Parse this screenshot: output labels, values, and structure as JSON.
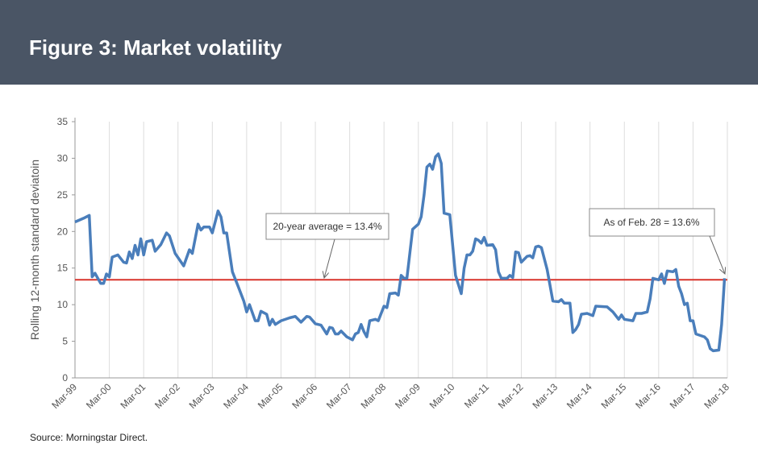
{
  "chart_data": {
    "type": "line",
    "title": "Figure 3: Market volatility",
    "y_label": "Rolling 12-month standard deviatoin",
    "source": "Source: Morningstar Direct.",
    "color": "#4a7ebb",
    "grid": "x",
    "xlim": [
      "1999-03",
      "2018-03"
    ],
    "xticks": [
      {
        "value": "1999-03",
        "label": "Mar-99"
      },
      {
        "value": "2000-03",
        "label": "Mar-00"
      },
      {
        "value": "2001-03",
        "label": "Mar-01"
      },
      {
        "value": "2002-03",
        "label": "Mar-02"
      },
      {
        "value": "2003-03",
        "label": "Mar-03"
      },
      {
        "value": "2004-03",
        "label": "Mar-04"
      },
      {
        "value": "2005-03",
        "label": "Mar-05"
      },
      {
        "value": "2006-03",
        "label": "Mar-06"
      },
      {
        "value": "2007-03",
        "label": "Mar-07"
      },
      {
        "value": "2008-03",
        "label": "Mar-08"
      },
      {
        "value": "2009-03",
        "label": "Mar-09"
      },
      {
        "value": "2010-03",
        "label": "Mar-10"
      },
      {
        "value": "2011-03",
        "label": "Mar-11"
      },
      {
        "value": "2012-03",
        "label": "Mar-12"
      },
      {
        "value": "2013-03",
        "label": "Mar-13"
      },
      {
        "value": "2014-03",
        "label": "Mar-14"
      },
      {
        "value": "2015-03",
        "label": "Mar-15"
      },
      {
        "value": "2016-03",
        "label": "Mar-16"
      },
      {
        "value": "2017-03",
        "label": "Mar-17"
      },
      {
        "value": "2018-03",
        "label": "Mar-18"
      }
    ],
    "ylim": [
      0,
      35
    ],
    "yticks": [
      0,
      5,
      10,
      15,
      20,
      25,
      30,
      35
    ],
    "average": {
      "value": 13.4,
      "color": "#d9342b"
    },
    "annotations": [
      "20-year average = 13.4%",
      "As of Feb. 28 = 13.6%"
    ],
    "x": [
      "1999-03",
      "1999-06",
      "1999-08",
      "1999-09",
      "1999-10",
      "1999-12",
      "2000-01",
      "2000-02",
      "2000-03",
      "2000-04",
      "2000-06",
      "2000-08",
      "2000-09",
      "2000-10",
      "2000-11",
      "2000-12",
      "2001-01",
      "2001-02",
      "2001-03",
      "2001-04",
      "2001-06",
      "2001-07",
      "2001-09",
      "2001-11",
      "2001-12",
      "2002-02",
      "2002-05",
      "2002-07",
      "2002-08",
      "2002-10",
      "2002-11",
      "2002-12",
      "2003-02",
      "2003-03",
      "2003-05",
      "2003-06",
      "2003-07",
      "2003-08",
      "2003-10",
      "2003-12",
      "2004-02",
      "2004-03",
      "2004-04",
      "2004-06",
      "2004-07",
      "2004-08",
      "2004-10",
      "2004-11",
      "2004-12",
      "2005-01",
      "2005-03",
      "2005-06",
      "2005-08",
      "2005-10",
      "2005-12",
      "2006-01",
      "2006-03",
      "2006-05",
      "2006-07",
      "2006-08",
      "2006-09",
      "2006-10",
      "2006-11",
      "2006-12",
      "2007-02",
      "2007-04",
      "2007-05",
      "2007-06",
      "2007-07",
      "2007-08",
      "2007-09",
      "2007-10",
      "2007-12",
      "2008-01",
      "2008-03",
      "2008-04",
      "2008-05",
      "2008-07",
      "2008-08",
      "2008-09",
      "2008-10",
      "2008-11",
      "2009-01",
      "2009-03",
      "2009-04",
      "2009-05",
      "2009-06",
      "2009-07",
      "2009-08",
      "2009-09",
      "2009-10",
      "2009-11",
      "2009-12",
      "2010-02",
      "2010-04",
      "2010-06",
      "2010-07",
      "2010-08",
      "2010-09",
      "2010-10",
      "2010-11",
      "2010-12",
      "2011-01",
      "2011-02",
      "2011-03",
      "2011-05",
      "2011-06",
      "2011-07",
      "2011-08",
      "2011-10",
      "2011-11",
      "2011-12",
      "2012-01",
      "2012-02",
      "2012-03",
      "2012-05",
      "2012-06",
      "2012-07",
      "2012-08",
      "2012-09",
      "2012-10",
      "2012-12",
      "2013-02",
      "2013-04",
      "2013-05",
      "2013-06",
      "2013-08",
      "2013-09",
      "2013-10",
      "2013-11",
      "2013-12",
      "2014-02",
      "2014-04",
      "2014-05",
      "2014-09",
      "2014-11",
      "2015-01",
      "2015-02",
      "2015-03",
      "2015-06",
      "2015-07",
      "2015-09",
      "2015-11",
      "2015-12",
      "2016-01",
      "2016-03",
      "2016-04",
      "2016-05",
      "2016-06",
      "2016-08",
      "2016-09",
      "2016-10",
      "2016-11",
      "2016-12",
      "2017-01",
      "2017-02",
      "2017-03",
      "2017-04",
      "2017-07",
      "2017-08",
      "2017-09",
      "2017-10",
      "2017-12",
      "2018-01",
      "2018-02"
    ],
    "values": [
      21.3,
      21.8,
      22.2,
      13.8,
      14.3,
      12.9,
      12.9,
      14.2,
      13.8,
      16.5,
      16.8,
      15.8,
      15.7,
      17.2,
      16.3,
      18.1,
      16.8,
      19.0,
      16.8,
      18.6,
      18.8,
      17.3,
      18.2,
      19.8,
      19.4,
      17.0,
      15.3,
      17.5,
      17.0,
      21.0,
      20.2,
      20.6,
      20.6,
      19.8,
      22.8,
      22.0,
      19.8,
      19.8,
      14.5,
      12.5,
      10.5,
      9.0,
      10.0,
      7.8,
      7.8,
      9.1,
      8.7,
      7.2,
      8.0,
      7.3,
      7.8,
      8.2,
      8.4,
      7.6,
      8.4,
      8.3,
      7.4,
      7.2,
      6.0,
      6.9,
      6.8,
      6.0,
      6.0,
      6.4,
      5.6,
      5.2,
      6.0,
      6.2,
      7.3,
      6.3,
      5.6,
      7.8,
      8.0,
      7.8,
      9.8,
      9.6,
      11.5,
      11.6,
      11.3,
      14.0,
      13.6,
      13.6,
      20.3,
      21.0,
      22.0,
      25.0,
      28.8,
      29.2,
      28.5,
      30.2,
      30.6,
      29.3,
      22.5,
      22.3,
      14.0,
      11.5,
      15.0,
      16.8,
      16.8,
      17.3,
      19.0,
      18.8,
      18.4,
      19.2,
      18.1,
      18.2,
      17.5,
      14.5,
      13.6,
      13.6,
      14.0,
      13.7,
      17.2,
      17.1,
      15.8,
      16.6,
      16.7,
      16.4,
      17.9,
      18.0,
      17.8,
      14.8,
      10.5,
      10.4,
      10.7,
      10.2,
      10.2,
      6.2,
      6.6,
      7.3,
      8.7,
      8.8,
      8.5,
      9.8,
      9.7,
      9.0,
      8.0,
      8.6,
      8.0,
      7.8,
      8.8,
      8.8,
      9.0,
      10.8,
      13.6,
      13.4,
      14.2,
      12.9,
      14.6,
      14.5,
      14.8,
      12.5,
      11.5,
      10.0,
      10.2,
      7.8,
      7.8,
      6.0,
      5.6,
      5.2,
      4.0,
      3.7,
      3.8,
      7.3,
      13.6
    ]
  }
}
